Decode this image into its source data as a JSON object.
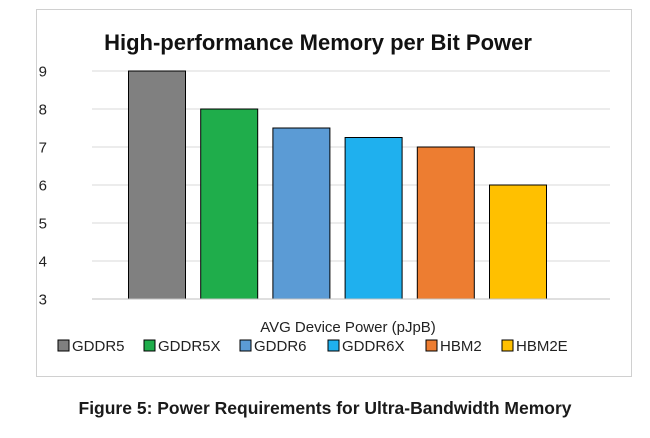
{
  "chart_data": {
    "type": "bar",
    "title": "High-performance Memory per Bit Power",
    "xlabel": "AVG Device Power (pJpB)",
    "ylabel": "",
    "categories": [
      "GDDR5",
      "GDDR5X",
      "GDDR6",
      "GDDR6X",
      "HBM2",
      "HBM2E"
    ],
    "values": [
      9,
      8,
      7.5,
      7.25,
      7,
      6
    ],
    "colors": [
      "#808080",
      "#1fad4b",
      "#5b9bd5",
      "#1fb0ee",
      "#ed7d31",
      "#ffc000"
    ],
    "yticks": [
      "3",
      "4",
      "5",
      "6",
      "7",
      "8",
      "9"
    ],
    "ylim": [
      3,
      9
    ],
    "grid": true,
    "legend": "bottom"
  },
  "caption": "Figure 5: Power Requirements for Ultra-Bandwidth Memory"
}
